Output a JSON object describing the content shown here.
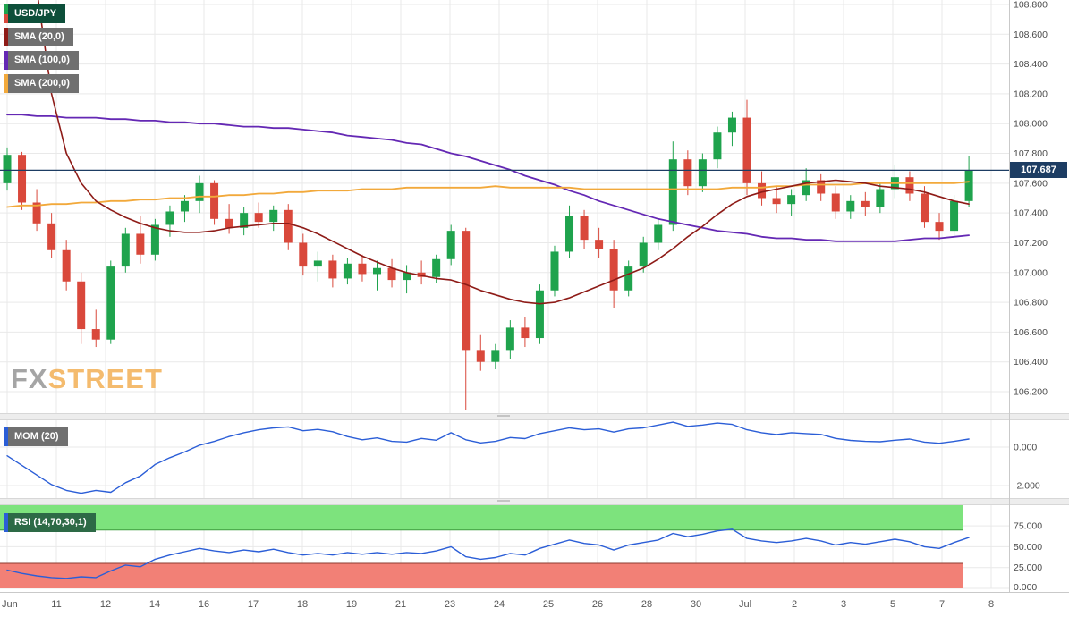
{
  "legends": {
    "main": [
      {
        "label": "USD/JPY",
        "bg": "#0d4f3a",
        "strip_up": "#1fa34d",
        "strip_down": "#d9483b"
      },
      {
        "label": "SMA (20,0)",
        "bg": "#707070",
        "strip": "#8e1b17"
      },
      {
        "label": "SMA (100,0)",
        "bg": "#707070",
        "strip": "#6428b4"
      },
      {
        "label": "SMA (200,0)",
        "bg": "#707070",
        "strip": "#f2a93b"
      }
    ],
    "mom": {
      "label": "MOM (20)",
      "bg": "#707070",
      "strip": "#2b5ed7"
    },
    "rsi": {
      "label": "RSI (14,70,30,1)",
      "bg": "#2d6a46",
      "strip": "#2b5ed7"
    }
  },
  "watermark": {
    "fx": "FX",
    "street": "STREET",
    "fx_color": "#8f8f8f",
    "street_color": "#f2ab4a"
  },
  "chart_data": {
    "type": "candlestick",
    "instrument": "USD/JPY",
    "current_price": 107.687,
    "current_price_label": "107.687",
    "x_ticks": [
      "Jun",
      "11",
      "12",
      "14",
      "16",
      "17",
      "18",
      "19",
      "21",
      "23",
      "24",
      "25",
      "26",
      "28",
      "30",
      "Jul",
      "2",
      "3",
      "5",
      "7",
      "8"
    ],
    "price_axis": {
      "min": 106.2,
      "max": 108.8,
      "step": 0.2,
      "labels": [
        "108.800",
        "108.600",
        "108.400",
        "108.200",
        "108.000",
        "107.800",
        "107.600",
        "107.400",
        "107.200",
        "107.000",
        "106.800",
        "106.600",
        "106.400",
        "106.200"
      ]
    },
    "candles": [
      [
        107.6,
        107.84,
        107.55,
        107.79
      ],
      [
        107.79,
        107.81,
        107.42,
        107.47
      ],
      [
        107.47,
        107.56,
        107.28,
        107.33
      ],
      [
        107.33,
        107.4,
        107.1,
        107.15
      ],
      [
        107.15,
        107.22,
        106.88,
        106.94
      ],
      [
        106.94,
        107.0,
        106.52,
        106.62
      ],
      [
        106.62,
        106.75,
        106.5,
        106.55
      ],
      [
        106.55,
        107.08,
        106.52,
        107.04
      ],
      [
        107.04,
        107.3,
        107.0,
        107.26
      ],
      [
        107.26,
        107.38,
        107.06,
        107.12
      ],
      [
        107.12,
        107.36,
        107.08,
        107.32
      ],
      [
        107.32,
        107.45,
        107.24,
        107.41
      ],
      [
        107.41,
        107.52,
        107.34,
        107.48
      ],
      [
        107.48,
        107.65,
        107.4,
        107.6
      ],
      [
        107.6,
        107.62,
        107.32,
        107.36
      ],
      [
        107.36,
        107.46,
        107.26,
        107.3
      ],
      [
        107.3,
        107.44,
        107.25,
        107.4
      ],
      [
        107.4,
        107.47,
        107.3,
        107.34
      ],
      [
        107.34,
        107.45,
        107.28,
        107.42
      ],
      [
        107.42,
        107.46,
        107.15,
        107.2
      ],
      [
        107.2,
        107.26,
        106.98,
        107.04
      ],
      [
        107.04,
        107.14,
        106.94,
        107.08
      ],
      [
        107.08,
        107.12,
        106.9,
        106.96
      ],
      [
        106.96,
        107.1,
        106.92,
        107.06
      ],
      [
        107.06,
        107.12,
        106.94,
        106.99
      ],
      [
        106.99,
        107.08,
        106.88,
        107.03
      ],
      [
        107.03,
        107.09,
        106.9,
        106.95
      ],
      [
        106.95,
        107.05,
        106.86,
        107.0
      ],
      [
        107.0,
        107.08,
        106.92,
        106.97
      ],
      [
        106.97,
        107.12,
        106.93,
        107.09
      ],
      [
        107.09,
        107.32,
        107.05,
        107.28
      ],
      [
        107.28,
        107.3,
        106.08,
        106.48
      ],
      [
        106.48,
        106.58,
        106.34,
        106.4
      ],
      [
        106.4,
        106.52,
        106.35,
        106.48
      ],
      [
        106.48,
        106.68,
        106.42,
        106.63
      ],
      [
        106.63,
        106.7,
        106.5,
        106.56
      ],
      [
        106.56,
        106.92,
        106.52,
        106.88
      ],
      [
        106.88,
        107.18,
        106.84,
        107.14
      ],
      [
        107.14,
        107.45,
        107.1,
        107.38
      ],
      [
        107.38,
        107.42,
        107.16,
        107.22
      ],
      [
        107.22,
        107.3,
        107.1,
        107.16
      ],
      [
        107.16,
        107.22,
        106.76,
        106.88
      ],
      [
        106.88,
        107.08,
        106.84,
        107.04
      ],
      [
        107.04,
        107.24,
        107.0,
        107.2
      ],
      [
        107.2,
        107.36,
        107.15,
        107.32
      ],
      [
        107.32,
        107.88,
        107.28,
        107.76
      ],
      [
        107.76,
        107.82,
        107.52,
        107.58
      ],
      [
        107.58,
        107.8,
        107.54,
        107.76
      ],
      [
        107.76,
        107.98,
        107.7,
        107.94
      ],
      [
        107.94,
        108.08,
        107.85,
        108.04
      ],
      [
        108.04,
        108.16,
        107.52,
        107.6
      ],
      [
        107.6,
        107.68,
        107.45,
        107.5
      ],
      [
        107.5,
        107.58,
        107.4,
        107.46
      ],
      [
        107.46,
        107.56,
        107.38,
        107.52
      ],
      [
        107.52,
        107.7,
        107.48,
        107.62
      ],
      [
        107.62,
        107.66,
        107.48,
        107.53
      ],
      [
        107.53,
        107.58,
        107.36,
        107.41
      ],
      [
        107.41,
        107.52,
        107.36,
        107.48
      ],
      [
        107.48,
        107.54,
        107.38,
        107.44
      ],
      [
        107.44,
        107.6,
        107.4,
        107.56
      ],
      [
        107.56,
        107.72,
        107.5,
        107.64
      ],
      [
        107.64,
        107.68,
        107.48,
        107.53
      ],
      [
        107.53,
        107.58,
        107.3,
        107.34
      ],
      [
        107.34,
        107.4,
        107.22,
        107.28
      ],
      [
        107.28,
        107.52,
        107.25,
        107.48
      ],
      [
        107.48,
        107.78,
        107.44,
        107.687
      ]
    ],
    "sma20": [
      null,
      null,
      108.9,
      108.2,
      107.8,
      107.6,
      107.48,
      107.42,
      107.37,
      107.33,
      107.3,
      107.28,
      107.27,
      107.27,
      107.28,
      107.3,
      107.31,
      107.32,
      107.33,
      107.33,
      107.3,
      107.26,
      107.21,
      107.16,
      107.11,
      107.07,
      107.03,
      107.0,
      106.98,
      106.96,
      106.95,
      106.92,
      106.88,
      106.85,
      106.82,
      106.8,
      106.79,
      106.8,
      106.83,
      106.87,
      106.91,
      106.95,
      106.99,
      107.03,
      107.09,
      107.16,
      107.24,
      107.31,
      107.39,
      107.46,
      107.51,
      107.54,
      107.56,
      107.58,
      107.6,
      107.61,
      107.62,
      107.61,
      107.6,
      107.58,
      107.57,
      107.56,
      107.54,
      107.51,
      107.48,
      107.46
    ],
    "sma100": [
      108.06,
      108.06,
      108.05,
      108.05,
      108.04,
      108.04,
      108.04,
      108.03,
      108.03,
      108.02,
      108.02,
      108.01,
      108.01,
      108.0,
      108.0,
      107.99,
      107.98,
      107.98,
      107.97,
      107.97,
      107.96,
      107.95,
      107.94,
      107.92,
      107.91,
      107.9,
      107.89,
      107.87,
      107.86,
      107.83,
      107.8,
      107.78,
      107.75,
      107.72,
      107.69,
      107.65,
      107.62,
      107.59,
      107.55,
      107.52,
      107.48,
      107.45,
      107.42,
      107.39,
      107.36,
      107.34,
      107.32,
      107.3,
      107.28,
      107.27,
      107.26,
      107.24,
      107.23,
      107.23,
      107.22,
      107.22,
      107.21,
      107.21,
      107.21,
      107.21,
      107.21,
      107.22,
      107.23,
      107.23,
      107.24,
      107.25
    ],
    "sma200": [
      107.44,
      107.45,
      107.45,
      107.46,
      107.46,
      107.47,
      107.47,
      107.48,
      107.48,
      107.49,
      107.49,
      107.5,
      107.5,
      107.51,
      107.51,
      107.52,
      107.52,
      107.53,
      107.53,
      107.54,
      107.54,
      107.55,
      107.55,
      107.55,
      107.56,
      107.56,
      107.56,
      107.57,
      107.57,
      107.57,
      107.57,
      107.57,
      107.57,
      107.58,
      107.57,
      107.57,
      107.57,
      107.57,
      107.57,
      107.56,
      107.56,
      107.56,
      107.56,
      107.56,
      107.56,
      107.56,
      107.56,
      107.56,
      107.56,
      107.57,
      107.57,
      107.57,
      107.58,
      107.58,
      107.59,
      107.59,
      107.59,
      107.59,
      107.6,
      107.6,
      107.6,
      107.6,
      107.6,
      107.6,
      107.6,
      107.61
    ],
    "indicators": {
      "mom": {
        "name": "MOM (20)",
        "period": 20,
        "axis_labels": [
          "0.000",
          "-2.000"
        ],
        "values": [
          -0.45,
          -0.95,
          -1.45,
          -1.95,
          -2.25,
          -2.4,
          -2.25,
          -2.35,
          -1.85,
          -1.5,
          -0.9,
          -0.55,
          -0.25,
          0.1,
          0.3,
          0.55,
          0.75,
          0.9,
          1.0,
          1.05,
          0.85,
          0.92,
          0.8,
          0.55,
          0.38,
          0.48,
          0.3,
          0.26,
          0.45,
          0.36,
          0.75,
          0.38,
          0.22,
          0.3,
          0.5,
          0.44,
          0.7,
          0.85,
          1.0,
          0.9,
          0.95,
          0.78,
          0.95,
          1.0,
          1.15,
          1.3,
          1.08,
          1.15,
          1.25,
          1.18,
          0.9,
          0.75,
          0.65,
          0.75,
          0.7,
          0.66,
          0.45,
          0.35,
          0.3,
          0.28,
          0.36,
          0.42,
          0.26,
          0.2,
          0.3,
          0.42
        ]
      },
      "rsi": {
        "name": "RSI (14,70,30,1)",
        "axis_labels": [
          "75.000",
          "50.000",
          "25.000",
          "0.000"
        ],
        "overbought": 70,
        "oversold": 30,
        "band_colors": {
          "overbought": "#7de37d",
          "overbought_edge": "#3f9d3f",
          "oversold": "#f28076",
          "oversold_edge": "#8e3b30"
        },
        "values": [
          22,
          18,
          15,
          13,
          12,
          14,
          13,
          21,
          28,
          26,
          35,
          40,
          44,
          48,
          45,
          43,
          46,
          44,
          47,
          43,
          40,
          42,
          40,
          43,
          41,
          43,
          41,
          43,
          42,
          45,
          50,
          38,
          35,
          37,
          42,
          40,
          48,
          53,
          58,
          54,
          52,
          46,
          52,
          55,
          58,
          66,
          62,
          65,
          69,
          71,
          60,
          57,
          55,
          57,
          60,
          57,
          52,
          55,
          53,
          56,
          59,
          56,
          50,
          48,
          55,
          61
        ]
      }
    },
    "colors": {
      "up": "#1fa34d",
      "down": "#d9483b",
      "sma20": "#8e1b17",
      "sma100": "#6428b4",
      "sma200": "#f2a93b",
      "indicator_line": "#2b5ed7",
      "price_line": "#1d3d63",
      "grid": "#e9e9e9",
      "axis_text": "#4a4a4a"
    }
  }
}
